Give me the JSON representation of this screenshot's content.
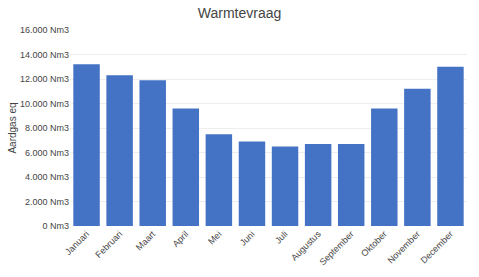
{
  "chart_data": {
    "type": "bar",
    "title": "Warmtevraag",
    "ylabel": "Aardgas eq",
    "categories": [
      "Januari",
      "Februari",
      "Maart",
      "April",
      "Mei",
      "Juni",
      "Juli",
      "Augustus",
      "September",
      "Oktober",
      "November",
      "December"
    ],
    "values": [
      13200,
      12300,
      11900,
      9600,
      7500,
      6900,
      6500,
      6700,
      6700,
      9600,
      11200,
      13000
    ],
    "color": "#4472C4",
    "ylim": [
      0,
      16000
    ],
    "yticks": [
      {
        "value": 0,
        "label": "0 Nm3"
      },
      {
        "value": 2000,
        "label": "2.000 Nm3"
      },
      {
        "value": 4000,
        "label": "4.000 Nm3"
      },
      {
        "value": 6000,
        "label": "6.000 Nm3"
      },
      {
        "value": 8000,
        "label": "8.000 Nm3"
      },
      {
        "value": 10000,
        "label": "10.000 Nm3"
      },
      {
        "value": 12000,
        "label": "12.000 Nm3"
      },
      {
        "value": 14000,
        "label": "14.000 Nm3"
      },
      {
        "value": 16000,
        "label": "16.000 Nm3"
      }
    ],
    "grid": true
  }
}
